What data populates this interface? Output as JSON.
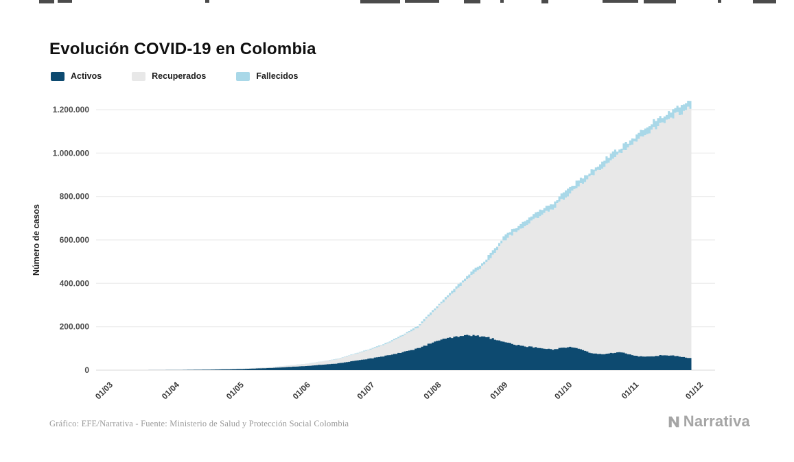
{
  "page": {
    "title": "Evolución COVID-19 en Colombia",
    "footer_source": "Gráfico: EFE/Narrativa - Fuente: Ministerio de Salud y Protección Social Colombia",
    "brand": "Narrativa"
  },
  "legend": [
    {
      "label": "Activos",
      "color": "#0d4a70"
    },
    {
      "label": "Recuperados",
      "color": "#e8e8e8"
    },
    {
      "label": "Fallecidos",
      "color": "#a9d8e8"
    }
  ],
  "chart_data": {
    "type": "area",
    "stacked": true,
    "title": "Evolución COVID-19 en Colombia",
    "xlabel": "",
    "ylabel": "Número de casos",
    "ylim": [
      0,
      1260000
    ],
    "grid": "horizontal",
    "legend_position": "top-left",
    "yticks": [
      0,
      200000,
      400000,
      600000,
      800000,
      1000000,
      1200000
    ],
    "ytick_labels": [
      "0",
      "200.000",
      "400.000",
      "600.000",
      "800.000",
      "1.000.000",
      "1.200.000"
    ],
    "xtick_labels": [
      "01/03",
      "01/04",
      "01/05",
      "01/06",
      "01/07",
      "01/08",
      "01/09",
      "01/10",
      "01/11",
      "01/12"
    ],
    "xtick_days": [
      0,
      31,
      61,
      92,
      122,
      153,
      184,
      214,
      245,
      275
    ],
    "x_day_range": [
      0,
      270
    ],
    "series_order_bottom_to_top": [
      "Activos",
      "Recuperados",
      "Fallecidos"
    ],
    "points": [
      {
        "day": 0,
        "activos": 1,
        "recuperados": 0,
        "fallecidos": 0
      },
      {
        "day": 14,
        "activos": 30,
        "recuperados": 1,
        "fallecidos": 0
      },
      {
        "day": 24,
        "activos": 400,
        "recuperados": 10,
        "fallecidos": 4
      },
      {
        "day": 31,
        "activos": 900,
        "recuperados": 110,
        "fallecidos": 20
      },
      {
        "day": 45,
        "activos": 2400,
        "recuperados": 500,
        "fallecidos": 130
      },
      {
        "day": 61,
        "activos": 5300,
        "recuperados": 1600,
        "fallecidos": 320
      },
      {
        "day": 75,
        "activos": 10100,
        "recuperados": 3400,
        "fallecidos": 560
      },
      {
        "day": 92,
        "activos": 19600,
        "recuperados": 10000,
        "fallecidos": 970
      },
      {
        "day": 106,
        "activos": 31200,
        "recuperados": 20000,
        "fallecidos": 1700
      },
      {
        "day": 122,
        "activos": 55000,
        "recuperados": 43000,
        "fallecidos": 3700
      },
      {
        "day": 129,
        "activos": 68000,
        "recuperados": 55000,
        "fallecidos": 4700
      },
      {
        "day": 136,
        "activos": 83000,
        "recuperados": 74000,
        "fallecidos": 6000
      },
      {
        "day": 143,
        "activos": 100000,
        "recuperados": 96000,
        "fallecidos": 7600
      },
      {
        "day": 153,
        "activos": 138000,
        "recuperados": 158000,
        "fallecidos": 10300
      },
      {
        "day": 160,
        "activos": 152000,
        "recuperados": 210000,
        "fallecidos": 12300
      },
      {
        "day": 167,
        "activos": 160000,
        "recuperados": 268000,
        "fallecidos": 14500
      },
      {
        "day": 174,
        "activos": 155000,
        "recuperados": 330000,
        "fallecidos": 16800
      },
      {
        "day": 184,
        "activos": 128000,
        "recuperados": 476000,
        "fallecidos": 20000
      },
      {
        "day": 191,
        "activos": 112000,
        "recuperados": 540000,
        "fallecidos": 21700
      },
      {
        "day": 198,
        "activos": 104000,
        "recuperados": 594000,
        "fallecidos": 23200
      },
      {
        "day": 206,
        "activos": 96000,
        "recuperados": 650000,
        "fallecidos": 24700
      },
      {
        "day": 214,
        "activos": 108000,
        "recuperados": 707000,
        "fallecidos": 26000
      },
      {
        "day": 218,
        "activos": 98000,
        "recuperados": 749000,
        "fallecidos": 26700
      },
      {
        "day": 224,
        "activos": 78000,
        "recuperados": 814000,
        "fallecidos": 27800
      },
      {
        "day": 230,
        "activos": 73000,
        "recuperados": 866000,
        "fallecidos": 28600
      },
      {
        "day": 237,
        "activos": 84000,
        "recuperados": 909000,
        "fallecidos": 29600
      },
      {
        "day": 245,
        "activos": 65000,
        "recuperados": 987000,
        "fallecidos": 31000
      },
      {
        "day": 251,
        "activos": 62000,
        "recuperados": 1037000,
        "fallecidos": 32300
      },
      {
        "day": 256,
        "activos": 68000,
        "recuperados": 1064000,
        "fallecidos": 33400
      },
      {
        "day": 262,
        "activos": 68000,
        "recuperados": 1102000,
        "fallecidos": 34800
      },
      {
        "day": 266,
        "activos": 60000,
        "recuperados": 1128000,
        "fallecidos": 35500
      },
      {
        "day": 270,
        "activos": 55000,
        "recuperados": 1152000,
        "fallecidos": 36300
      }
    ]
  }
}
